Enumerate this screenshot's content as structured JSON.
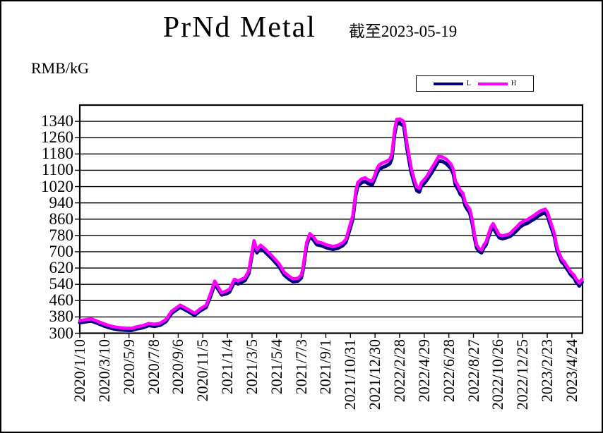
{
  "header": {
    "title": "PrNd Metal",
    "as_of": "截至2023-05-19"
  },
  "y_axis_unit_label": "RMB/kG",
  "legend": {
    "items": [
      {
        "label": "L",
        "color": "#000080"
      },
      {
        "label": "H",
        "color": "#FF00FF"
      }
    ]
  },
  "colors": {
    "background": "#FFFFFF",
    "axis": "#000000",
    "series_L": "#000080",
    "series_H": "#FF00FF"
  },
  "chart_data": {
    "type": "line",
    "title": "PrNd Metal",
    "as_of_label": "截至2023-05-19",
    "ylabel": "RMB/kG",
    "ylim": [
      300,
      1420
    ],
    "yticks": [
      300,
      380,
      460,
      540,
      620,
      700,
      780,
      860,
      940,
      1020,
      1100,
      1180,
      1260,
      1340
    ],
    "grid": "horizontal-only",
    "legend_position": "top-right",
    "x_axis": {
      "start_date": "2020/1/10",
      "end_date": "2023/5/19",
      "tick_interval_days": 60,
      "total_days_span": 1226,
      "tick_labels": [
        "2020/1/10",
        "2020/3/10",
        "2020/5/9",
        "2020/7/8",
        "2020/9/6",
        "2020/11/5",
        "2021/1/4",
        "2021/3/5",
        "2021/5/4",
        "2021/7/3",
        "2021/9/1",
        "2021/10/31",
        "2021/12/30",
        "2022/2/28",
        "2022/4/29",
        "2022/6/28",
        "2022/8/27",
        "2022/10/26",
        "2022/12/25",
        "2023/2/23",
        "2023/4/24"
      ]
    },
    "days": [
      0,
      14,
      28,
      42,
      56,
      70,
      84,
      98,
      112,
      126,
      140,
      154,
      168,
      182,
      196,
      210,
      224,
      245,
      266,
      280,
      294,
      308,
      320,
      329,
      346,
      358,
      365,
      377,
      386,
      403,
      412,
      425,
      432,
      441,
      451,
      468,
      486,
      498,
      510,
      520,
      532,
      540,
      544,
      553,
      561,
      570,
      578,
      589,
      604,
      618,
      630,
      641,
      649,
      658,
      666,
      673,
      678,
      687,
      696,
      704,
      713,
      718,
      725,
      730,
      739,
      747,
      756,
      761,
      768,
      773,
      780,
      790,
      799,
      808,
      816,
      822,
      828,
      833,
      839,
      846,
      856,
      863,
      875,
      885,
      894,
      905,
      911,
      916,
      923,
      928,
      934,
      940,
      945,
      951,
      957,
      963,
      968,
      974,
      980,
      985,
      991,
      997,
      1003,
      1008,
      1014,
      1023,
      1031,
      1040,
      1049,
      1057,
      1066,
      1074,
      1083,
      1092,
      1100,
      1109,
      1117,
      1126,
      1135,
      1141,
      1146,
      1152,
      1158,
      1161,
      1164,
      1169,
      1175,
      1181,
      1186,
      1192,
      1195,
      1200,
      1206,
      1210,
      1215,
      1218,
      1221,
      1225
    ],
    "series": [
      {
        "name": "L",
        "color": "#000080",
        "values": [
          352,
          356,
          360,
          350,
          338,
          328,
          321,
          317,
          315,
          314,
          322,
          327,
          338,
          334,
          339,
          357,
          398,
          428,
          405,
          388,
          410,
          427,
          486,
          542,
          488,
          494,
          502,
          551,
          542,
          559,
          593,
          741,
          695,
          718,
          701,
          667,
          627,
          587,
          566,
          553,
          556,
          571,
          604,
          730,
          775,
          758,
          735,
          730,
          718,
          712,
          718,
          730,
          747,
          805,
          862,
          977,
          1022,
          1039,
          1045,
          1034,
          1028,
          1051,
          1086,
          1104,
          1115,
          1121,
          1132,
          1158,
          1280,
          1328,
          1330,
          1318,
          1195,
          1092,
          1034,
          1000,
          993,
          1022,
          1034,
          1051,
          1081,
          1104,
          1146,
          1143,
          1132,
          1109,
          1081,
          1028,
          1005,
          982,
          971,
          925,
          908,
          891,
          840,
          764,
          718,
          701,
          695,
          718,
          735,
          775,
          805,
          820,
          797,
          769,
          764,
          769,
          775,
          788,
          805,
          822,
          834,
          840,
          851,
          862,
          874,
          885,
          891,
          874,
          840,
          805,
          769,
          735,
          707,
          680,
          650,
          638,
          621,
          604,
          593,
          581,
          570,
          553,
          542,
          532,
          542,
          551
        ]
      },
      {
        "name": "H",
        "color": "#FF00FF",
        "values": [
          362,
          366,
          370,
          360,
          348,
          338,
          331,
          327,
          325,
          324,
          332,
          337,
          348,
          344,
          349,
          367,
          408,
          438,
          415,
          398,
          420,
          437,
          500,
          556,
          498,
          508,
          516,
          565,
          556,
          573,
          607,
          755,
          709,
          732,
          715,
          681,
          641,
          601,
          580,
          567,
          570,
          585,
          618,
          744,
          789,
          772,
          749,
          744,
          732,
          726,
          732,
          744,
          761,
          823,
          880,
          995,
          1040,
          1057,
          1063,
          1052,
          1046,
          1069,
          1108,
          1126,
          1137,
          1143,
          1154,
          1180,
          1302,
          1350,
          1352,
          1340,
          1217,
          1114,
          1052,
          1018,
          1011,
          1040,
          1052,
          1069,
          1103,
          1126,
          1168,
          1165,
          1154,
          1131,
          1103,
          1046,
          1023,
          1000,
          989,
          943,
          926,
          909,
          858,
          778,
          732,
          715,
          709,
          732,
          749,
          789,
          823,
          838,
          815,
          783,
          778,
          783,
          789,
          806,
          823,
          840,
          852,
          858,
          869,
          880,
          892,
          903,
          909,
          892,
          858,
          823,
          783,
          749,
          721,
          694,
          664,
          652,
          635,
          618,
          607,
          595,
          584,
          567,
          556,
          546,
          556,
          565
        ]
      }
    ]
  }
}
